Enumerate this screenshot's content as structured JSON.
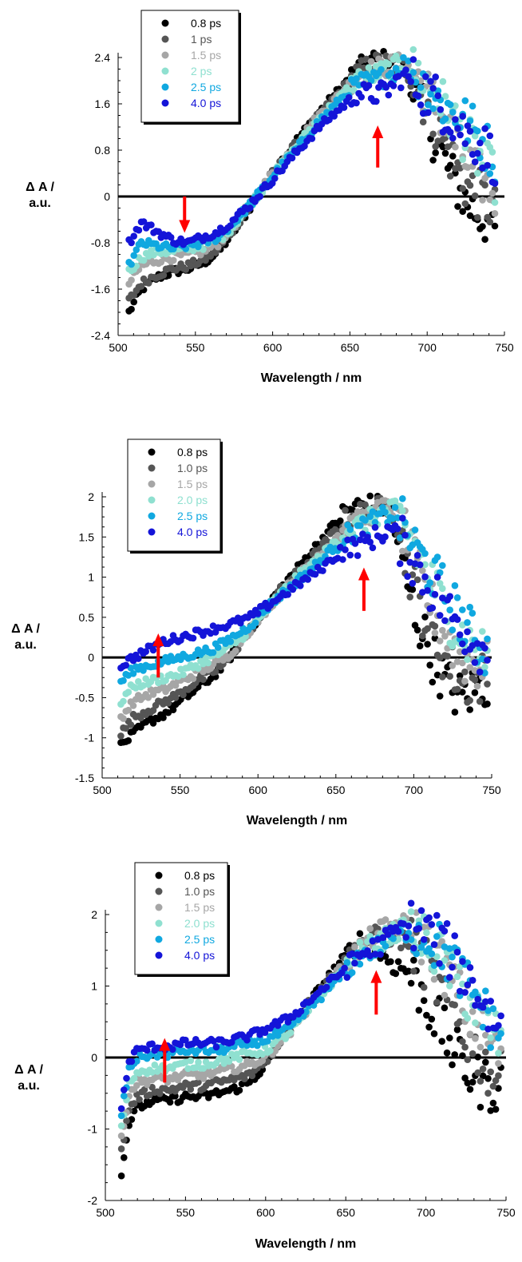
{
  "chart_data": [
    {
      "type": "scatter",
      "xlabel": "Wavelength / nm",
      "ylabel_line1": "Δ A /",
      "ylabel_line2": "a.u.",
      "xlim": [
        500,
        750
      ],
      "ylim": [
        -2.4,
        2.4
      ],
      "xticks": [
        "500",
        "550",
        "600",
        "650",
        "700",
        "750"
      ],
      "yticks": [
        "-2.4",
        "-1.6",
        "-0.8",
        "0",
        "0.8",
        "1.6",
        "2.4"
      ],
      "legend_position": "top-left",
      "arrows": [
        {
          "x": 543,
          "direction": "down",
          "from": -0.0,
          "to": -0.6
        },
        {
          "x": 668,
          "direction": "up",
          "from": 0.5,
          "to": 1.2
        }
      ],
      "series": [
        {
          "name": "0.8 ps",
          "color": "#000000",
          "x": [
            507,
            515,
            525,
            535,
            545,
            555,
            565,
            575,
            585,
            600,
            615,
            630,
            645,
            655,
            665,
            675,
            685,
            695,
            705,
            715,
            725,
            735,
            745
          ],
          "y": [
            -2.0,
            -1.6,
            -1.4,
            -1.3,
            -1.25,
            -1.15,
            -0.95,
            -0.6,
            -0.2,
            0.4,
            0.95,
            1.45,
            1.9,
            2.2,
            2.35,
            2.35,
            2.2,
            1.6,
            1.0,
            0.4,
            -0.1,
            -0.35,
            -0.55
          ]
        },
        {
          "name": "1 ps",
          "color": "#555555",
          "x": [
            507,
            515,
            525,
            535,
            545,
            555,
            565,
            575,
            585,
            600,
            615,
            630,
            645,
            655,
            665,
            675,
            685,
            695,
            705,
            715,
            725,
            735,
            745
          ],
          "y": [
            -1.8,
            -1.5,
            -1.35,
            -1.25,
            -1.2,
            -1.1,
            -0.9,
            -0.55,
            -0.2,
            0.4,
            0.9,
            1.4,
            1.85,
            2.15,
            2.3,
            2.3,
            2.25,
            1.8,
            1.3,
            0.7,
            0.2,
            0.0,
            -0.3
          ]
        },
        {
          "name": "1.5 ps",
          "color": "#a6a6a6",
          "x": [
            507,
            515,
            525,
            535,
            545,
            555,
            565,
            575,
            585,
            600,
            615,
            630,
            645,
            655,
            665,
            675,
            685,
            695,
            705,
            715,
            725,
            735,
            745
          ],
          "y": [
            -1.5,
            -1.2,
            -1.1,
            -1.05,
            -1.0,
            -0.95,
            -0.8,
            -0.5,
            -0.15,
            0.4,
            0.9,
            1.4,
            1.8,
            2.1,
            2.2,
            2.25,
            2.3,
            2.0,
            1.6,
            1.1,
            0.6,
            0.3,
            0.0
          ]
        },
        {
          "name": "2 ps",
          "color": "#8fe0d0",
          "x": [
            507,
            515,
            525,
            535,
            545,
            555,
            565,
            575,
            585,
            600,
            615,
            630,
            645,
            655,
            665,
            675,
            685,
            695,
            705,
            715,
            725,
            735,
            745
          ],
          "y": [
            -1.3,
            -1.05,
            -0.95,
            -0.95,
            -0.9,
            -0.85,
            -0.75,
            -0.5,
            -0.15,
            0.35,
            0.85,
            1.35,
            1.75,
            2.05,
            2.1,
            2.2,
            2.3,
            2.1,
            1.8,
            1.4,
            1.0,
            0.6,
            0.3
          ]
        },
        {
          "name": "2.5 ps",
          "color": "#10a8e0",
          "x": [
            507,
            515,
            525,
            535,
            545,
            555,
            565,
            575,
            585,
            600,
            615,
            630,
            645,
            655,
            665,
            675,
            685,
            695,
            705,
            715,
            725,
            735,
            745
          ],
          "y": [
            -1.2,
            -0.8,
            -0.85,
            -0.9,
            -0.85,
            -0.8,
            -0.7,
            -0.45,
            -0.15,
            0.35,
            0.8,
            1.3,
            1.7,
            1.95,
            2.0,
            2.1,
            2.3,
            2.0,
            1.7,
            1.5,
            1.3,
            1.0,
            0.6
          ]
        },
        {
          "name": "4.0 ps",
          "color": "#1414d8",
          "x": [
            507,
            515,
            525,
            535,
            545,
            555,
            565,
            575,
            585,
            600,
            615,
            630,
            645,
            655,
            665,
            675,
            685,
            695,
            705,
            715,
            725,
            735,
            745
          ],
          "y": [
            -0.8,
            -0.45,
            -0.6,
            -0.75,
            -0.8,
            -0.7,
            -0.6,
            -0.4,
            -0.15,
            0.3,
            0.75,
            1.2,
            1.55,
            1.8,
            1.75,
            1.85,
            2.1,
            1.9,
            1.7,
            1.4,
            1.1,
            0.9,
            0.6
          ]
        }
      ]
    },
    {
      "type": "scatter",
      "xlabel": "Wavelength / nm",
      "ylabel_line1": "Δ A /",
      "ylabel_line2": "a.u.",
      "xlim": [
        500,
        750
      ],
      "ylim": [
        -1.5,
        2
      ],
      "xticks": [
        "500",
        "550",
        "600",
        "650",
        "700",
        "750"
      ],
      "yticks": [
        "-1.5",
        "-1",
        "-0.5",
        "0",
        "0.5",
        "1",
        "1.5",
        "2"
      ],
      "legend_position": "top-left",
      "arrows": [
        {
          "x": 536,
          "direction": "up",
          "from": -0.25,
          "to": 0.28
        },
        {
          "x": 668,
          "direction": "up",
          "from": 0.58,
          "to": 1.1
        }
      ],
      "series": [
        {
          "name": "0.8 ps",
          "color": "#000000",
          "x": [
            512,
            520,
            530,
            540,
            550,
            560,
            570,
            580,
            595,
            610,
            625,
            640,
            655,
            665,
            675,
            685,
            690,
            700,
            710,
            720,
            730,
            740,
            748
          ],
          "y": [
            -1.1,
            -0.95,
            -0.8,
            -0.7,
            -0.55,
            -0.4,
            -0.25,
            -0.05,
            0.35,
            0.75,
            1.1,
            1.45,
            1.8,
            1.9,
            1.9,
            1.85,
            1.4,
            0.6,
            0.1,
            -0.3,
            -0.5,
            -0.4,
            -0.3
          ]
        },
        {
          "name": "1.0 ps",
          "color": "#555555",
          "x": [
            512,
            520,
            530,
            540,
            550,
            560,
            570,
            580,
            595,
            610,
            625,
            640,
            655,
            665,
            675,
            685,
            690,
            700,
            710,
            720,
            730,
            740,
            748
          ],
          "y": [
            -0.95,
            -0.75,
            -0.65,
            -0.55,
            -0.45,
            -0.3,
            -0.2,
            -0.05,
            0.35,
            0.75,
            1.05,
            1.35,
            1.7,
            1.8,
            1.85,
            1.9,
            1.6,
            0.9,
            0.35,
            0.0,
            -0.3,
            -0.3,
            -0.2
          ]
        },
        {
          "name": "1.5 ps",
          "color": "#a6a6a6",
          "x": [
            512,
            520,
            530,
            540,
            550,
            560,
            570,
            580,
            595,
            610,
            625,
            640,
            655,
            665,
            675,
            685,
            690,
            700,
            710,
            720,
            730,
            740,
            748
          ],
          "y": [
            -0.75,
            -0.55,
            -0.45,
            -0.4,
            -0.3,
            -0.2,
            -0.1,
            0.0,
            0.35,
            0.7,
            1.0,
            1.3,
            1.6,
            1.7,
            1.8,
            1.9,
            1.75,
            1.2,
            0.7,
            0.3,
            0.0,
            -0.1,
            -0.1
          ]
        },
        {
          "name": "2.0 ps",
          "color": "#8fe0d0",
          "x": [
            512,
            520,
            530,
            540,
            550,
            560,
            570,
            580,
            595,
            610,
            625,
            640,
            655,
            665,
            675,
            685,
            690,
            700,
            710,
            720,
            730,
            740,
            748
          ],
          "y": [
            -0.55,
            -0.35,
            -0.3,
            -0.25,
            -0.2,
            -0.1,
            0.0,
            0.1,
            0.35,
            0.7,
            1.0,
            1.25,
            1.55,
            1.65,
            1.75,
            1.85,
            1.8,
            1.4,
            1.0,
            0.6,
            0.3,
            0.1,
            0.0
          ]
        },
        {
          "name": "2.5 ps",
          "color": "#10a8e0",
          "x": [
            512,
            520,
            530,
            540,
            550,
            560,
            570,
            580,
            595,
            610,
            625,
            640,
            655,
            665,
            675,
            685,
            690,
            700,
            710,
            720,
            730,
            740,
            748
          ],
          "y": [
            -0.3,
            -0.15,
            -0.1,
            -0.05,
            0.0,
            0.05,
            0.1,
            0.2,
            0.4,
            0.7,
            0.95,
            1.2,
            1.5,
            1.6,
            1.7,
            1.8,
            1.75,
            1.4,
            1.1,
            0.8,
            0.5,
            0.2,
            0.05
          ]
        },
        {
          "name": "4.0 ps",
          "color": "#1414d8",
          "x": [
            512,
            520,
            530,
            540,
            550,
            560,
            570,
            580,
            595,
            610,
            625,
            640,
            655,
            665,
            675,
            685,
            690,
            700,
            710,
            720,
            730,
            740,
            748
          ],
          "y": [
            -0.1,
            0.0,
            0.1,
            0.2,
            0.25,
            0.3,
            0.35,
            0.4,
            0.5,
            0.7,
            0.9,
            1.1,
            1.35,
            1.4,
            1.5,
            1.6,
            1.5,
            1.2,
            0.9,
            0.6,
            0.4,
            0.2,
            0.0
          ]
        }
      ]
    },
    {
      "type": "scatter",
      "xlabel": "Wavelength / nm",
      "ylabel_line1": "Δ A /",
      "ylabel_line2": "a.u.",
      "xlim": [
        500,
        750
      ],
      "ylim": [
        -2,
        2
      ],
      "xticks": [
        "500",
        "550",
        "600",
        "650",
        "700",
        "750"
      ],
      "yticks": [
        "-2",
        "-1",
        "0",
        "1",
        "2"
      ],
      "legend_position": "top-left",
      "arrows": [
        {
          "x": 537,
          "direction": "up",
          "from": -0.35,
          "to": 0.25
        },
        {
          "x": 669,
          "direction": "up",
          "from": 0.6,
          "to": 1.2
        }
      ],
      "series": [
        {
          "name": "0.8 ps",
          "color": "#000000",
          "x": [
            510,
            515,
            520,
            530,
            540,
            550,
            560,
            570,
            580,
            590,
            600,
            615,
            630,
            645,
            660,
            670,
            680,
            690,
            700,
            710,
            720,
            730,
            740,
            748
          ],
          "y": [
            -1.6,
            -0.9,
            -0.7,
            -0.6,
            -0.6,
            -0.55,
            -0.55,
            -0.5,
            -0.45,
            -0.35,
            -0.1,
            0.4,
            0.85,
            1.3,
            1.65,
            1.5,
            1.3,
            1.2,
            0.8,
            0.4,
            0.0,
            -0.3,
            -0.4,
            -0.4
          ]
        },
        {
          "name": "1.0 ps",
          "color": "#555555",
          "x": [
            510,
            515,
            520,
            530,
            540,
            550,
            560,
            570,
            580,
            590,
            600,
            615,
            630,
            645,
            660,
            670,
            680,
            690,
            700,
            710,
            720,
            730,
            740,
            748
          ],
          "y": [
            -1.3,
            -0.7,
            -0.55,
            -0.45,
            -0.45,
            -0.4,
            -0.4,
            -0.35,
            -0.3,
            -0.25,
            -0.05,
            0.4,
            0.85,
            1.25,
            1.6,
            1.7,
            1.7,
            1.6,
            1.3,
            0.9,
            0.5,
            0.1,
            -0.2,
            -0.3
          ]
        },
        {
          "name": "1.5 ps",
          "color": "#a6a6a6",
          "x": [
            510,
            515,
            520,
            530,
            540,
            550,
            560,
            570,
            580,
            590,
            600,
            615,
            630,
            645,
            660,
            670,
            680,
            690,
            700,
            710,
            720,
            730,
            740,
            748
          ],
          "y": [
            -1.1,
            -0.5,
            -0.35,
            -0.3,
            -0.3,
            -0.25,
            -0.25,
            -0.2,
            -0.15,
            -0.1,
            0.0,
            0.35,
            0.8,
            1.2,
            1.55,
            1.75,
            1.85,
            1.85,
            1.6,
            1.3,
            0.9,
            0.5,
            0.2,
            0.0
          ]
        },
        {
          "name": "2.0 ps",
          "color": "#8fe0d0",
          "x": [
            510,
            515,
            520,
            530,
            540,
            550,
            560,
            570,
            580,
            590,
            600,
            615,
            630,
            645,
            660,
            670,
            680,
            690,
            700,
            710,
            720,
            730,
            740,
            748
          ],
          "y": [
            -1.0,
            -0.35,
            -0.2,
            -0.15,
            -0.15,
            -0.1,
            -0.1,
            -0.05,
            0.0,
            0.05,
            0.1,
            0.35,
            0.75,
            1.15,
            1.5,
            1.6,
            1.75,
            1.8,
            1.6,
            1.4,
            1.1,
            0.7,
            0.4,
            0.2
          ]
        },
        {
          "name": "2.5 ps",
          "color": "#10a8e0",
          "x": [
            510,
            515,
            520,
            530,
            540,
            550,
            560,
            570,
            580,
            590,
            600,
            615,
            630,
            645,
            660,
            670,
            680,
            690,
            700,
            710,
            720,
            730,
            740,
            748
          ],
          "y": [
            -0.8,
            -0.15,
            0.0,
            0.05,
            0.05,
            0.1,
            0.1,
            0.1,
            0.15,
            0.2,
            0.25,
            0.4,
            0.75,
            1.1,
            1.45,
            1.55,
            1.7,
            1.8,
            1.7,
            1.5,
            1.2,
            0.9,
            0.5,
            0.3
          ]
        },
        {
          "name": "4.0 ps",
          "color": "#1414d8",
          "x": [
            510,
            515,
            520,
            530,
            540,
            550,
            560,
            570,
            580,
            590,
            600,
            615,
            630,
            645,
            660,
            670,
            680,
            690,
            700,
            710,
            720,
            730,
            740,
            748
          ],
          "y": [
            -0.7,
            -0.05,
            0.1,
            0.15,
            0.15,
            0.2,
            0.2,
            0.2,
            0.25,
            0.3,
            0.4,
            0.55,
            0.85,
            1.15,
            1.45,
            1.55,
            1.75,
            1.85,
            1.8,
            1.6,
            1.3,
            1.0,
            0.6,
            0.4
          ]
        }
      ]
    }
  ]
}
